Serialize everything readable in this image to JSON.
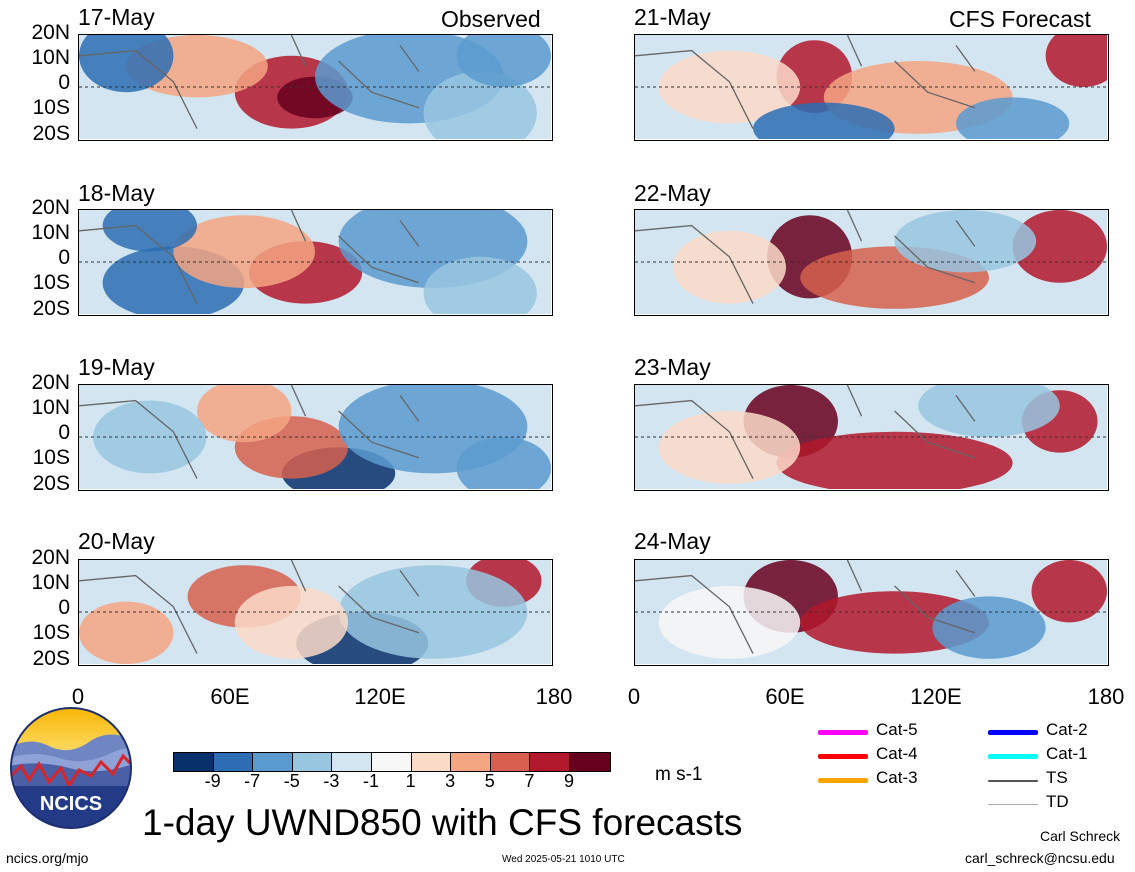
{
  "header": {
    "observed_label": "Observed",
    "forecast_label": "CFS Forecast"
  },
  "panels": {
    "left": [
      {
        "date": "17-May"
      },
      {
        "date": "18-May"
      },
      {
        "date": "19-May"
      },
      {
        "date": "20-May"
      }
    ],
    "right": [
      {
        "date": "21-May"
      },
      {
        "date": "22-May"
      },
      {
        "date": "23-May"
      },
      {
        "date": "24-May"
      }
    ]
  },
  "lat_labels": [
    "20N",
    "10N",
    "0",
    "10S",
    "20S"
  ],
  "lon_labels": [
    "0",
    "60E",
    "120E",
    "180"
  ],
  "colorbar": {
    "colors": [
      "#08306b",
      "#2c6db3",
      "#5a9bcf",
      "#98c5e0",
      "#d3e5f0",
      "#f7f7f7",
      "#fbdac8",
      "#f4a582",
      "#d6604d",
      "#b2182b",
      "#67001f"
    ],
    "labels": [
      "-9",
      "-7",
      "-5",
      "-3",
      "-1",
      "1",
      "3",
      "5",
      "7",
      "9"
    ],
    "units": "m s-1"
  },
  "legend": {
    "items": [
      {
        "label": "Cat-5",
        "color": "#ff00ff"
      },
      {
        "label": "Cat-4",
        "color": "#ff0000"
      },
      {
        "label": "Cat-3",
        "color": "#ffa500"
      },
      {
        "label": "Cat-2",
        "color": "#0000ff"
      },
      {
        "label": "Cat-1",
        "color": "#00ffff"
      },
      {
        "label": "TS",
        "color": "#555555"
      },
      {
        "label": "TD",
        "color": "#aaaaaa"
      }
    ]
  },
  "logo": {
    "text": "NCICS"
  },
  "title": "1-day UWND850 with CFS forecasts",
  "footer": {
    "url": "ncics.org/mjo",
    "timestamp": "Wed 2025-05-21 1010 UTC",
    "author": "Carl Schreck",
    "email": "carl_schreck@ncsu.edu"
  }
}
